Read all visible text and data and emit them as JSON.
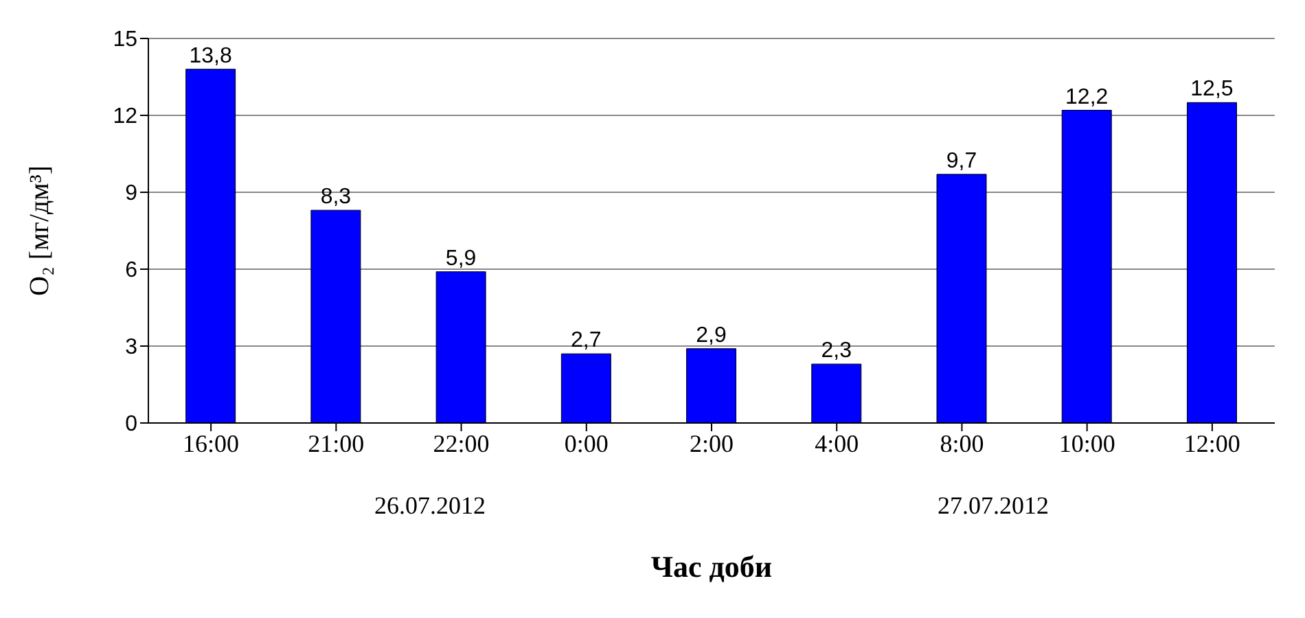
{
  "chart_data": {
    "type": "bar",
    "xlabel": "Час доби",
    "ylabel": "O₂ [мг/дм³]",
    "categories": [
      "16:00",
      "21:00",
      "22:00",
      "0:00",
      "2:00",
      "4:00",
      "8:00",
      "10:00",
      "12:00"
    ],
    "values": [
      13.8,
      8.3,
      5.9,
      2.7,
      2.9,
      2.3,
      9.7,
      12.2,
      12.5
    ],
    "value_labels": [
      "13,8",
      "8,3",
      "5,9",
      "2,7",
      "2,9",
      "2,3",
      "9,7",
      "12,2",
      "12,5"
    ],
    "color": "#0000ff",
    "ylim": [
      0,
      15
    ],
    "yticks": [
      0,
      3,
      6,
      9,
      12,
      15
    ],
    "grid": "y",
    "annotations": [
      "26.07.2012",
      "27.07.2012"
    ]
  }
}
